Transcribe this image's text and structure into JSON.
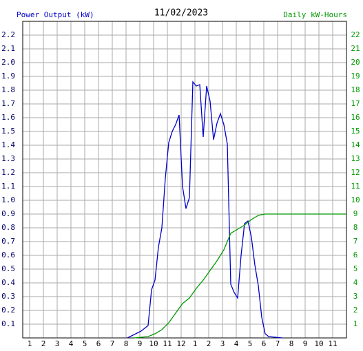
{
  "chart_data": {
    "type": "line",
    "title": "11/02/2023",
    "y_label": "Power Output (kW)",
    "y2_label": "Daily kW-Hours",
    "grid": true,
    "xlim": [
      0.5,
      24
    ],
    "xticks": [
      1,
      2,
      3,
      4,
      5,
      6,
      7,
      8,
      9,
      10,
      11,
      12,
      {
        "value": 13,
        "label": "1"
      },
      {
        "value": 14,
        "label": "2"
      },
      {
        "value": 15,
        "label": "3"
      },
      {
        "value": 16,
        "label": "4"
      },
      {
        "value": 17,
        "label": "5"
      },
      {
        "value": 18,
        "label": "6"
      },
      {
        "value": 19,
        "label": "7"
      },
      {
        "value": 20,
        "label": "8"
      },
      {
        "value": 21,
        "label": "9"
      },
      {
        "value": 22,
        "label": "10"
      },
      {
        "value": 23,
        "label": "11"
      }
    ],
    "ylim": [
      0,
      2.3
    ],
    "yticks": [
      0.1,
      0.2,
      0.3,
      0.4,
      0.5,
      0.6,
      0.7,
      0.8,
      0.9,
      {
        "value": 1,
        "label": "1.0"
      },
      1.1,
      1.2,
      1.3,
      1.4,
      1.5,
      1.6,
      1.7,
      1.8,
      1.9,
      {
        "value": 2,
        "label": "2.0"
      },
      2.1,
      2.2
    ],
    "y2lim": [
      0,
      23
    ],
    "y2ticks": [
      1,
      2,
      3,
      4,
      5,
      6,
      7,
      8,
      9,
      10,
      11,
      12,
      13,
      14,
      15,
      16,
      17,
      18,
      19,
      20,
      21,
      22
    ],
    "series": [
      {
        "name": "Power Output (kW)",
        "color": "#0000cc",
        "x": [
          8.1,
          9.1,
          9.6,
          9.85,
          10.1,
          10.35,
          10.6,
          10.85,
          11.1,
          11.35,
          11.6,
          11.85,
          12.1,
          12.35,
          12.6,
          12.85,
          13.1,
          13.35,
          13.6,
          13.85,
          14.1,
          14.35,
          14.6,
          14.85,
          15.1,
          15.35,
          15.6,
          15.85,
          16.1,
          16.35,
          16.6,
          16.85,
          17.1,
          17.35,
          17.6,
          17.85,
          18.1,
          18.35,
          19.35
        ],
        "values": [
          0,
          0.05,
          0.09,
          0.35,
          0.42,
          0.66,
          0.8,
          1.16,
          1.42,
          1.5,
          1.55,
          1.62,
          1.1,
          0.94,
          1.02,
          1.86,
          1.83,
          1.84,
          1.46,
          1.83,
          1.72,
          1.44,
          1.56,
          1.63,
          1.55,
          1.41,
          0.39,
          0.33,
          0.29,
          0.6,
          0.83,
          0.85,
          0.73,
          0.53,
          0.38,
          0.15,
          0.03,
          0.01,
          0
        ]
      },
      {
        "name": "Daily kW-Hours",
        "color": "#009900",
        "axis": "y2",
        "x": [
          8.6,
          9.6,
          10.1,
          10.6,
          11.1,
          11.6,
          12.1,
          12.6,
          13.1,
          13.6,
          14.1,
          14.6,
          15.1,
          15.6,
          16.1,
          16.6,
          17.1,
          17.6,
          18.1,
          24
        ],
        "values": [
          0,
          0.1,
          0.3,
          0.6,
          1.1,
          1.8,
          2.5,
          2.9,
          3.6,
          4.2,
          4.9,
          5.6,
          6.4,
          7.6,
          7.9,
          8.2,
          8.6,
          8.9,
          9.0,
          9.0
        ]
      }
    ]
  }
}
